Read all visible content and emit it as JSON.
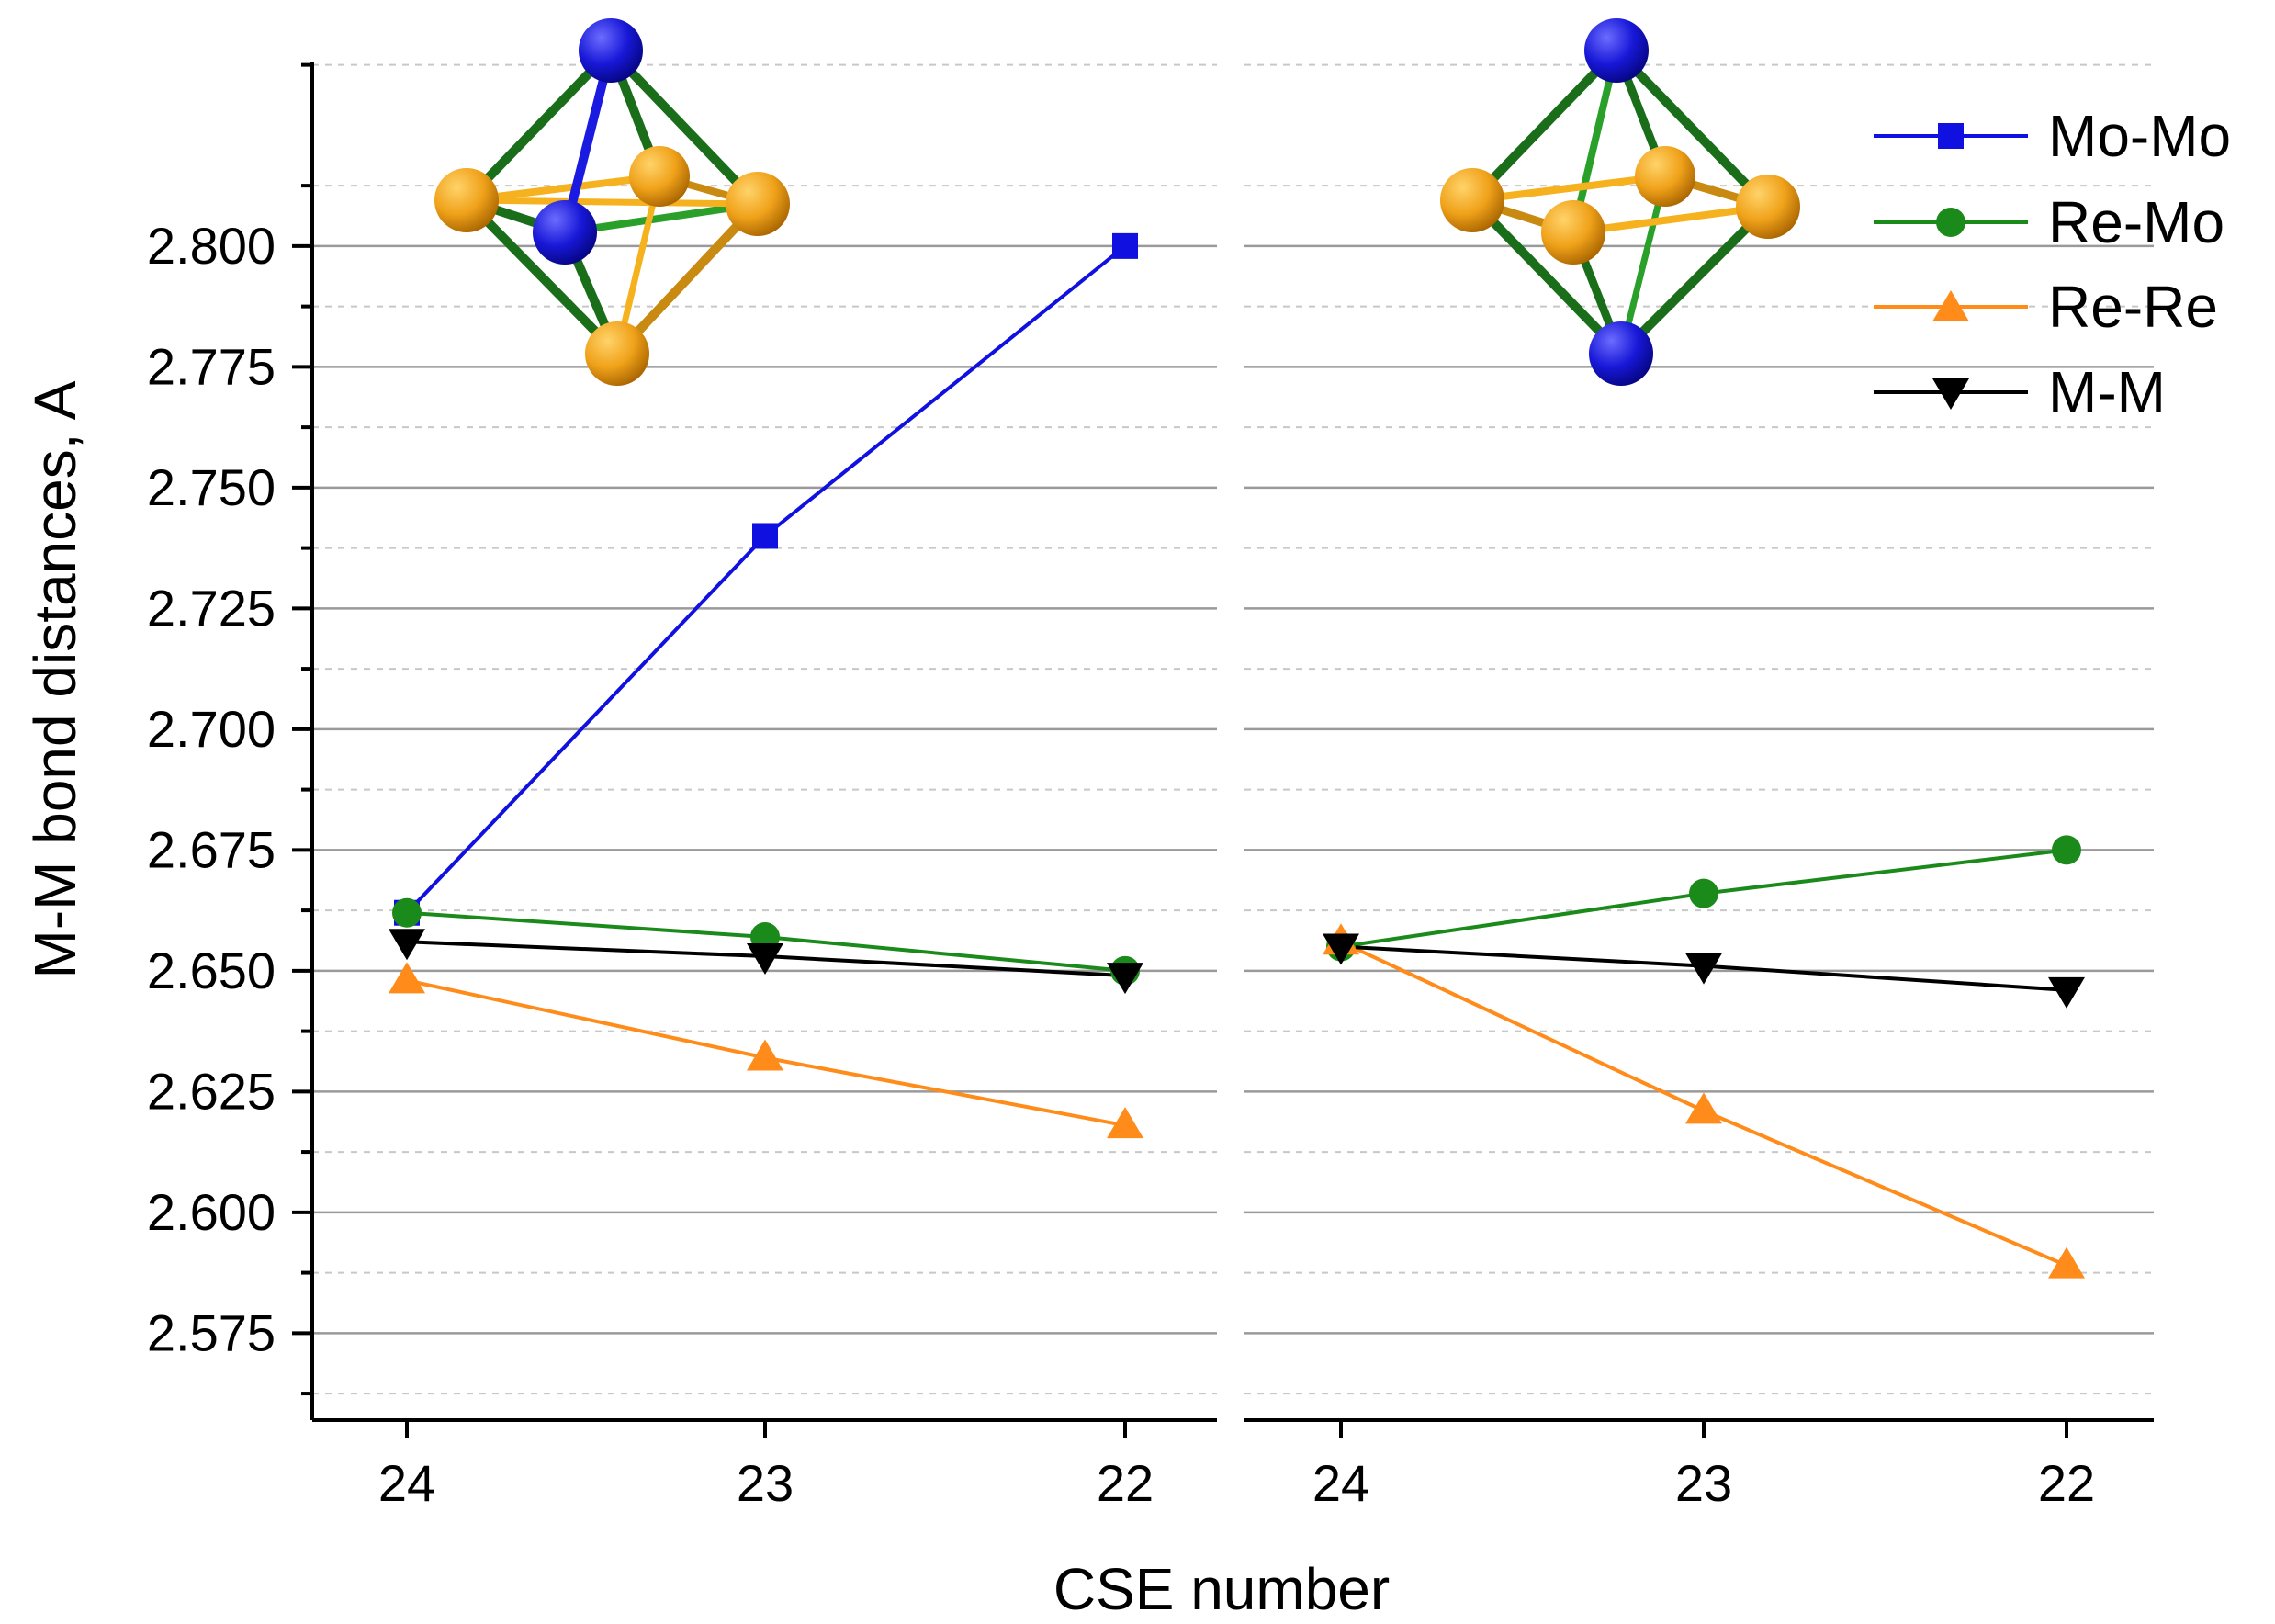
{
  "chart_data": {
    "type": "line",
    "ylabel": "M-M bond distances, A",
    "xlabel": "CSE number",
    "ylim": [
      2.557,
      2.838
    ],
    "y_ticks": [
      "2.575",
      "2.600",
      "2.625",
      "2.650",
      "2.675",
      "2.700",
      "2.725",
      "2.750",
      "2.775",
      "2.800"
    ],
    "y_tick_values": [
      2.575,
      2.6,
      2.625,
      2.65,
      2.675,
      2.7,
      2.725,
      2.75,
      2.775,
      2.8
    ],
    "grid": "horizontal major solid, minor dotted",
    "legend_position": "top-right",
    "colors": {
      "Mo-Mo": "#1010e0",
      "Re-Mo": "#1a8a1a",
      "Re-Re": "#ff8c1a",
      "M-M": "#000000"
    },
    "panels": [
      {
        "categories": [
          "24",
          "23",
          "22"
        ],
        "series": [
          {
            "name": "Mo-Mo",
            "marker": "square",
            "values": [
              2.662,
              2.74,
              2.8
            ]
          },
          {
            "name": "Re-Mo",
            "marker": "circle",
            "values": [
              2.662,
              2.657,
              2.65
            ]
          },
          {
            "name": "Re-Re",
            "marker": "triangle-up",
            "values": [
              2.648,
              2.632,
              2.618
            ]
          },
          {
            "name": "M-M",
            "marker": "triangle-down",
            "values": [
              2.656,
              2.653,
              2.649
            ]
          }
        ]
      },
      {
        "categories": [
          "24",
          "23",
          "22"
        ],
        "series": [
          {
            "name": "Re-Mo",
            "marker": "circle",
            "values": [
              2.655,
              2.666,
              2.675
            ]
          },
          {
            "name": "Re-Re",
            "marker": "triangle-up",
            "values": [
              2.656,
              2.621,
              2.589
            ]
          },
          {
            "name": "M-M",
            "marker": "triangle-down",
            "values": [
              2.655,
              2.651,
              2.646
            ]
          }
        ]
      }
    ],
    "legend": [
      "Mo-Mo",
      "Re-Mo",
      "Re-Re",
      "M-M"
    ],
    "insets": [
      {
        "name": "cis-octahedral-cluster-model"
      },
      {
        "name": "trans-octahedral-cluster-model"
      }
    ]
  }
}
